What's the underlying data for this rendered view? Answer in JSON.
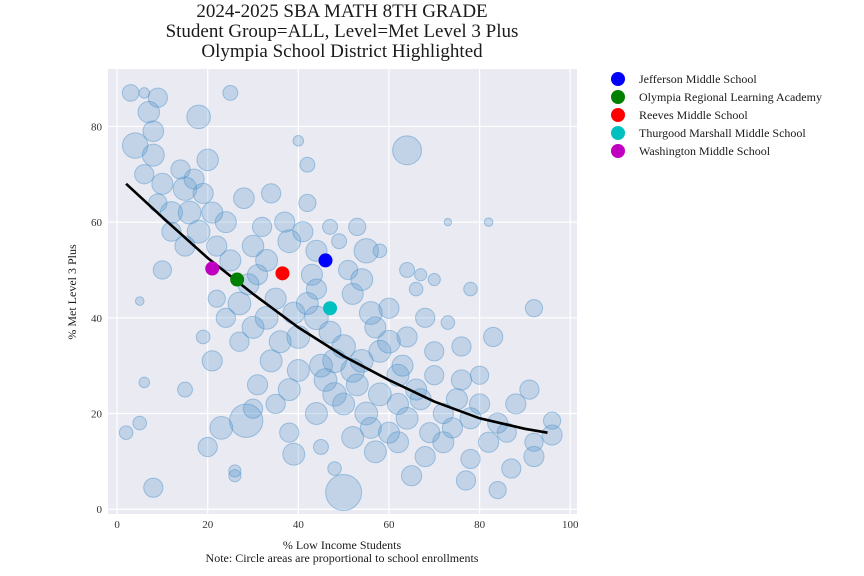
{
  "chart_data": {
    "type": "scatter",
    "title": [
      "2024-2025 SBA MATH 8TH GRADE",
      "Student Group=ALL, Level=Met Level 3 Plus",
      "Olympia School District Highlighted"
    ],
    "xlabel": "% Low Income Students",
    "note": "Note: Circle areas are proportional to school enrollments",
    "ylabel": "% Met Level 3 Plus",
    "xlim": [
      -2,
      101.5
    ],
    "ylim": [
      -1,
      92
    ],
    "xticks": [
      0,
      20,
      40,
      60,
      80,
      100
    ],
    "yticks": [
      0,
      20,
      40,
      60,
      80
    ],
    "grid": true,
    "legend_position": "outside-right",
    "background_color": "#eaeaf2",
    "background_points_color": "#4a90c8",
    "trend_line": {
      "color": "#000000",
      "points": [
        [
          2,
          68
        ],
        [
          10,
          61
        ],
        [
          20,
          52.5
        ],
        [
          30,
          45
        ],
        [
          40,
          38
        ],
        [
          50,
          32
        ],
        [
          60,
          27
        ],
        [
          70,
          22.5
        ],
        [
          80,
          19
        ],
        [
          90,
          16.8
        ],
        [
          95,
          16
        ]
      ]
    },
    "highlighted": [
      {
        "name": "Jefferson Middle School",
        "x": 46,
        "y": 52,
        "color": "#0000ff"
      },
      {
        "name": "Olympia Regional Learning Academy",
        "x": 26.5,
        "y": 48,
        "color": "#008000"
      },
      {
        "name": "Reeves Middle School",
        "x": 36.5,
        "y": 49.3,
        "color": "#ff0000"
      },
      {
        "name": "Thurgood Marshall Middle School",
        "x": 47,
        "y": 42,
        "color": "#00c0c0"
      },
      {
        "name": "Washington Middle School",
        "x": 21,
        "y": 50.3,
        "color": "#c000c0"
      }
    ],
    "schools_sample": [
      {
        "x": 3,
        "y": 87,
        "enrollment": 150
      },
      {
        "x": 6,
        "y": 87,
        "enrollment": 60
      },
      {
        "x": 9,
        "y": 86,
        "enrollment": 200
      },
      {
        "x": 25,
        "y": 87,
        "enrollment": 120
      },
      {
        "x": 7,
        "y": 83,
        "enrollment": 250
      },
      {
        "x": 8,
        "y": 79,
        "enrollment": 230
      },
      {
        "x": 4,
        "y": 76,
        "enrollment": 350
      },
      {
        "x": 18,
        "y": 82,
        "enrollment": 300
      },
      {
        "x": 8,
        "y": 74,
        "enrollment": 260
      },
      {
        "x": 20,
        "y": 73,
        "enrollment": 250
      },
      {
        "x": 40,
        "y": 77,
        "enrollment": 60
      },
      {
        "x": 64,
        "y": 75,
        "enrollment": 450
      },
      {
        "x": 42,
        "y": 72,
        "enrollment": 120
      },
      {
        "x": 14,
        "y": 71,
        "enrollment": 200
      },
      {
        "x": 10,
        "y": 68,
        "enrollment": 240
      },
      {
        "x": 15,
        "y": 67,
        "enrollment": 300
      },
      {
        "x": 19,
        "y": 66,
        "enrollment": 220
      },
      {
        "x": 28,
        "y": 65,
        "enrollment": 230
      },
      {
        "x": 34,
        "y": 66,
        "enrollment": 200
      },
      {
        "x": 16,
        "y": 62,
        "enrollment": 280
      },
      {
        "x": 24,
        "y": 60,
        "enrollment": 240
      },
      {
        "x": 32,
        "y": 59,
        "enrollment": 200
      },
      {
        "x": 41,
        "y": 58,
        "enrollment": 220
      },
      {
        "x": 30,
        "y": 55,
        "enrollment": 250
      },
      {
        "x": 38,
        "y": 56,
        "enrollment": 280
      },
      {
        "x": 22,
        "y": 55,
        "enrollment": 220
      },
      {
        "x": 49,
        "y": 56,
        "enrollment": 120
      },
      {
        "x": 55,
        "y": 54,
        "enrollment": 320
      },
      {
        "x": 10,
        "y": 50,
        "enrollment": 180
      },
      {
        "x": 64,
        "y": 50,
        "enrollment": 120
      },
      {
        "x": 73,
        "y": 60,
        "enrollment": 30
      },
      {
        "x": 82,
        "y": 60,
        "enrollment": 40
      },
      {
        "x": 54,
        "y": 48,
        "enrollment": 260
      },
      {
        "x": 66,
        "y": 46,
        "enrollment": 100
      },
      {
        "x": 92,
        "y": 42,
        "enrollment": 160
      },
      {
        "x": 5,
        "y": 43.5,
        "enrollment": 40
      },
      {
        "x": 27,
        "y": 43,
        "enrollment": 280
      },
      {
        "x": 35,
        "y": 44,
        "enrollment": 240
      },
      {
        "x": 44,
        "y": 40,
        "enrollment": 300
      },
      {
        "x": 56,
        "y": 41,
        "enrollment": 280
      },
      {
        "x": 73,
        "y": 39,
        "enrollment": 100
      },
      {
        "x": 30,
        "y": 38,
        "enrollment": 260
      },
      {
        "x": 40,
        "y": 36,
        "enrollment": 280
      },
      {
        "x": 50,
        "y": 34,
        "enrollment": 300
      },
      {
        "x": 60,
        "y": 35,
        "enrollment": 280
      },
      {
        "x": 83,
        "y": 36,
        "enrollment": 200
      },
      {
        "x": 21,
        "y": 31,
        "enrollment": 220
      },
      {
        "x": 34,
        "y": 31,
        "enrollment": 260
      },
      {
        "x": 45,
        "y": 30,
        "enrollment": 280
      },
      {
        "x": 52,
        "y": 29,
        "enrollment": 300
      },
      {
        "x": 62,
        "y": 28,
        "enrollment": 260
      },
      {
        "x": 70,
        "y": 28,
        "enrollment": 200
      },
      {
        "x": 6,
        "y": 26.5,
        "enrollment": 60
      },
      {
        "x": 15,
        "y": 25,
        "enrollment": 120
      },
      {
        "x": 38,
        "y": 25,
        "enrollment": 260
      },
      {
        "x": 48,
        "y": 24,
        "enrollment": 300
      },
      {
        "x": 58,
        "y": 24,
        "enrollment": 280
      },
      {
        "x": 67,
        "y": 23,
        "enrollment": 240
      },
      {
        "x": 75,
        "y": 23,
        "enrollment": 240
      },
      {
        "x": 91,
        "y": 25,
        "enrollment": 200
      },
      {
        "x": 30,
        "y": 21,
        "enrollment": 200
      },
      {
        "x": 44,
        "y": 20,
        "enrollment": 260
      },
      {
        "x": 55,
        "y": 20,
        "enrollment": 280
      },
      {
        "x": 64,
        "y": 19,
        "enrollment": 260
      },
      {
        "x": 78,
        "y": 19,
        "enrollment": 240
      },
      {
        "x": 28.5,
        "y": 18.5,
        "enrollment": 600
      },
      {
        "x": 23,
        "y": 17,
        "enrollment": 280
      },
      {
        "x": 5,
        "y": 18,
        "enrollment": 100
      },
      {
        "x": 84,
        "y": 18,
        "enrollment": 220
      },
      {
        "x": 96,
        "y": 18.5,
        "enrollment": 160
      },
      {
        "x": 2,
        "y": 16,
        "enrollment": 100
      },
      {
        "x": 38,
        "y": 16,
        "enrollment": 200
      },
      {
        "x": 52,
        "y": 15,
        "enrollment": 260
      },
      {
        "x": 62,
        "y": 14,
        "enrollment": 240
      },
      {
        "x": 72,
        "y": 14,
        "enrollment": 240
      },
      {
        "x": 82,
        "y": 14,
        "enrollment": 220
      },
      {
        "x": 96,
        "y": 15.5,
        "enrollment": 220
      },
      {
        "x": 20,
        "y": 13,
        "enrollment": 200
      },
      {
        "x": 45,
        "y": 13,
        "enrollment": 120
      },
      {
        "x": 57,
        "y": 12,
        "enrollment": 260
      },
      {
        "x": 68,
        "y": 11,
        "enrollment": 220
      },
      {
        "x": 78,
        "y": 10.5,
        "enrollment": 200
      },
      {
        "x": 92,
        "y": 11,
        "enrollment": 220
      },
      {
        "x": 39,
        "y": 11.5,
        "enrollment": 260
      },
      {
        "x": 26,
        "y": 8,
        "enrollment": 80
      },
      {
        "x": 48,
        "y": 8.5,
        "enrollment": 100
      },
      {
        "x": 87,
        "y": 8.5,
        "enrollment": 200
      },
      {
        "x": 65,
        "y": 7,
        "enrollment": 220
      },
      {
        "x": 77,
        "y": 6,
        "enrollment": 200
      },
      {
        "x": 8,
        "y": 4.5,
        "enrollment": 200
      },
      {
        "x": 84,
        "y": 4,
        "enrollment": 160
      },
      {
        "x": 50,
        "y": 3.5,
        "enrollment": 700
      },
      {
        "x": 26,
        "y": 7,
        "enrollment": 80
      },
      {
        "x": 33,
        "y": 52,
        "enrollment": 260
      },
      {
        "x": 43,
        "y": 49,
        "enrollment": 240
      },
      {
        "x": 52,
        "y": 45,
        "enrollment": 240
      },
      {
        "x": 60,
        "y": 42,
        "enrollment": 220
      },
      {
        "x": 68,
        "y": 40,
        "enrollment": 200
      },
      {
        "x": 76,
        "y": 34,
        "enrollment": 200
      },
      {
        "x": 80,
        "y": 28,
        "enrollment": 180
      },
      {
        "x": 88,
        "y": 22,
        "enrollment": 220
      },
      {
        "x": 12,
        "y": 62,
        "enrollment": 260
      },
      {
        "x": 6,
        "y": 70,
        "enrollment": 200
      },
      {
        "x": 25,
        "y": 52,
        "enrollment": 240
      },
      {
        "x": 18,
        "y": 58,
        "enrollment": 280
      },
      {
        "x": 29,
        "y": 47,
        "enrollment": 240
      },
      {
        "x": 33,
        "y": 40,
        "enrollment": 280
      },
      {
        "x": 42,
        "y": 43,
        "enrollment": 260
      },
      {
        "x": 47,
        "y": 37,
        "enrollment": 260
      },
      {
        "x": 54,
        "y": 31,
        "enrollment": 280
      },
      {
        "x": 58,
        "y": 33,
        "enrollment": 260
      },
      {
        "x": 63,
        "y": 30,
        "enrollment": 240
      },
      {
        "x": 66,
        "y": 25,
        "enrollment": 240
      },
      {
        "x": 72,
        "y": 20,
        "enrollment": 220
      },
      {
        "x": 74,
        "y": 17,
        "enrollment": 220
      },
      {
        "x": 60,
        "y": 16,
        "enrollment": 240
      },
      {
        "x": 50,
        "y": 22,
        "enrollment": 260
      },
      {
        "x": 40,
        "y": 29,
        "enrollment": 260
      },
      {
        "x": 36,
        "y": 35,
        "enrollment": 260
      },
      {
        "x": 27,
        "y": 35,
        "enrollment": 200
      },
      {
        "x": 24,
        "y": 40,
        "enrollment": 200
      },
      {
        "x": 15,
        "y": 55,
        "enrollment": 220
      },
      {
        "x": 21,
        "y": 62,
        "enrollment": 240
      },
      {
        "x": 37,
        "y": 60,
        "enrollment": 220
      },
      {
        "x": 44,
        "y": 54,
        "enrollment": 240
      },
      {
        "x": 51,
        "y": 50,
        "enrollment": 200
      },
      {
        "x": 57,
        "y": 38,
        "enrollment": 240
      },
      {
        "x": 64,
        "y": 36,
        "enrollment": 220
      },
      {
        "x": 70,
        "y": 33,
        "enrollment": 200
      },
      {
        "x": 76,
        "y": 27,
        "enrollment": 220
      },
      {
        "x": 80,
        "y": 22,
        "enrollment": 220
      },
      {
        "x": 86,
        "y": 16,
        "enrollment": 200
      },
      {
        "x": 92,
        "y": 14,
        "enrollment": 180
      },
      {
        "x": 69,
        "y": 16,
        "enrollment": 220
      },
      {
        "x": 46,
        "y": 27,
        "enrollment": 280
      },
      {
        "x": 31,
        "y": 26,
        "enrollment": 220
      },
      {
        "x": 35,
        "y": 22,
        "enrollment": 200
      },
      {
        "x": 56,
        "y": 17,
        "enrollment": 240
      },
      {
        "x": 62,
        "y": 22,
        "enrollment": 240
      },
      {
        "x": 53,
        "y": 26,
        "enrollment": 260
      },
      {
        "x": 48,
        "y": 31,
        "enrollment": 300
      },
      {
        "x": 39,
        "y": 41,
        "enrollment": 260
      },
      {
        "x": 44,
        "y": 46,
        "enrollment": 220
      },
      {
        "x": 31,
        "y": 49,
        "enrollment": 220
      },
      {
        "x": 12,
        "y": 58,
        "enrollment": 200
      },
      {
        "x": 9,
        "y": 64,
        "enrollment": 180
      },
      {
        "x": 17,
        "y": 69,
        "enrollment": 220
      },
      {
        "x": 22,
        "y": 44,
        "enrollment": 160
      },
      {
        "x": 19,
        "y": 36,
        "enrollment": 100
      },
      {
        "x": 42,
        "y": 64,
        "enrollment": 160
      },
      {
        "x": 47,
        "y": 59,
        "enrollment": 120
      },
      {
        "x": 53,
        "y": 59,
        "enrollment": 160
      },
      {
        "x": 58,
        "y": 54,
        "enrollment": 100
      },
      {
        "x": 67,
        "y": 49,
        "enrollment": 80
      },
      {
        "x": 70,
        "y": 48,
        "enrollment": 80
      },
      {
        "x": 78,
        "y": 46,
        "enrollment": 100
      }
    ]
  },
  "legend": {
    "items": [
      {
        "label": "Jefferson Middle School",
        "color": "#0000ff"
      },
      {
        "label": "Olympia Regional Learning Academy",
        "color": "#008000"
      },
      {
        "label": "Reeves Middle School",
        "color": "#ff0000"
      },
      {
        "label": "Thurgood Marshall Middle School",
        "color": "#00c0c0"
      },
      {
        "label": "Washington Middle School",
        "color": "#c000c0"
      }
    ]
  }
}
